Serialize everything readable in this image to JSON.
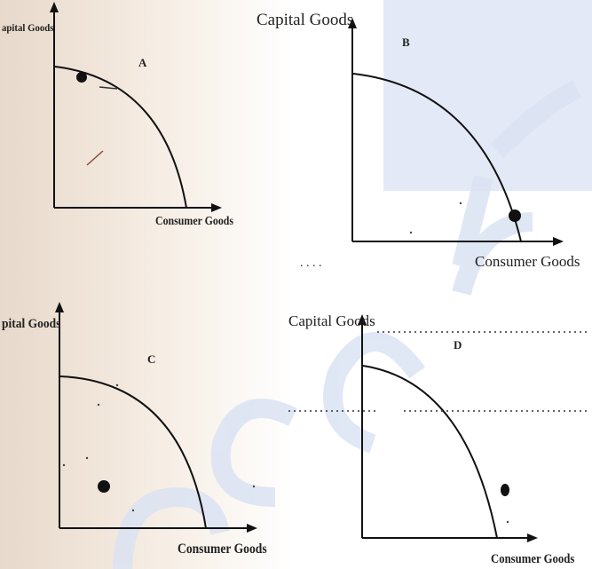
{
  "panels": {
    "a": {
      "letter": "A",
      "ylabel": "apital Goods",
      "xlabel": "Consumer Goods"
    },
    "b": {
      "letter": "B",
      "ylabel": "Capital Goods",
      "xlabel": "Consumer Goods"
    },
    "c": {
      "letter": "C",
      "ylabel": "pital Goods",
      "xlabel": "Consumer Goods"
    },
    "d": {
      "letter": "D",
      "ylabel": "Capital Goods",
      "xlabel": "Consumer Goods"
    }
  },
  "colors": {
    "ink": "#111111",
    "watermark": "#d3dcf0"
  }
}
